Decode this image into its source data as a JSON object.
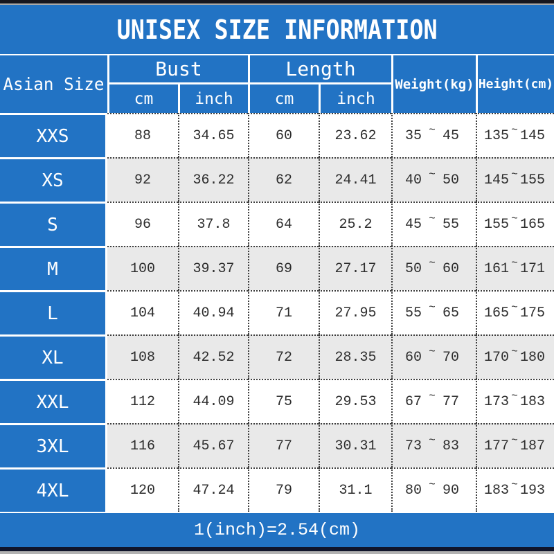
{
  "title": "UNISEX SIZE INFORMATION",
  "table": {
    "size_header": "Asian Size",
    "bust_group": {
      "label": "Bust",
      "cm": "cm",
      "inch": "inch"
    },
    "length_group": {
      "label": "Length",
      "cm": "cm",
      "inch": "inch"
    },
    "weight_header": "Weight(kg)",
    "height_header": "Height(cm)",
    "tilde": "~",
    "rows": [
      {
        "size": "XXS",
        "bust_cm": "88",
        "bust_inch": "34.65",
        "length_cm": "60",
        "length_inch": "23.62",
        "weight_min": "35",
        "weight_max": "45",
        "height_min": "135",
        "height_max": "145"
      },
      {
        "size": "XS",
        "bust_cm": "92",
        "bust_inch": "36.22",
        "length_cm": "62",
        "length_inch": "24.41",
        "weight_min": "40",
        "weight_max": "50",
        "height_min": "145",
        "height_max": "155"
      },
      {
        "size": "S",
        "bust_cm": "96",
        "bust_inch": "37.8",
        "length_cm": "64",
        "length_inch": "25.2",
        "weight_min": "45",
        "weight_max": "55",
        "height_min": "155",
        "height_max": "165"
      },
      {
        "size": "M",
        "bust_cm": "100",
        "bust_inch": "39.37",
        "length_cm": "69",
        "length_inch": "27.17",
        "weight_min": "50",
        "weight_max": "60",
        "height_min": "161",
        "height_max": "171"
      },
      {
        "size": "L",
        "bust_cm": "104",
        "bust_inch": "40.94",
        "length_cm": "71",
        "length_inch": "27.95",
        "weight_min": "55",
        "weight_max": "65",
        "height_min": "165",
        "height_max": "175"
      },
      {
        "size": "XL",
        "bust_cm": "108",
        "bust_inch": "42.52",
        "length_cm": "72",
        "length_inch": "28.35",
        "weight_min": "60",
        "weight_max": "70",
        "height_min": "170",
        "height_max": "180"
      },
      {
        "size": "XXL",
        "bust_cm": "112",
        "bust_inch": "44.09",
        "length_cm": "75",
        "length_inch": "29.53",
        "weight_min": "67",
        "weight_max": "77",
        "height_min": "173",
        "height_max": "183"
      },
      {
        "size": "3XL",
        "bust_cm": "116",
        "bust_inch": "45.67",
        "length_cm": "77",
        "length_inch": "30.31",
        "weight_min": "73",
        "weight_max": "83",
        "height_min": "177",
        "height_max": "187"
      },
      {
        "size": "4XL",
        "bust_cm": "120",
        "bust_inch": "47.24",
        "length_cm": "79",
        "length_inch": "31.1",
        "weight_min": "80",
        "weight_max": "90",
        "height_min": "183",
        "height_max": "193"
      }
    ]
  },
  "footer": {
    "note": "1(inch)=2.54(cm)"
  },
  "colors": {
    "accent_blue": "#2273c4",
    "row_alt_gray": "#e9e9e9",
    "top_bar_dark": "#16161f",
    "bottom_bar_dark": "#10152b",
    "text_dark": "#2d2d2d",
    "text_light": "#ffffff"
  },
  "chart_data": {
    "type": "table",
    "title": "UNISEX SIZE INFORMATION",
    "columns": [
      "Asian Size",
      "Bust cm",
      "Bust inch",
      "Length cm",
      "Length inch",
      "Weight(kg)",
      "Height(cm)"
    ],
    "rows": [
      [
        "XXS",
        88,
        34.65,
        60,
        23.62,
        "35~45",
        "135~145"
      ],
      [
        "XS",
        92,
        36.22,
        62,
        24.41,
        "40~50",
        "145~155"
      ],
      [
        "S",
        96,
        37.8,
        64,
        25.2,
        "45~55",
        "155~165"
      ],
      [
        "M",
        100,
        39.37,
        69,
        27.17,
        "50~60",
        "161~171"
      ],
      [
        "L",
        104,
        40.94,
        71,
        27.95,
        "55~65",
        "165~175"
      ],
      [
        "XL",
        108,
        42.52,
        72,
        28.35,
        "60~70",
        "170~180"
      ],
      [
        "XXL",
        112,
        44.09,
        75,
        29.53,
        "67~77",
        "173~183"
      ],
      [
        "3XL",
        116,
        45.67,
        77,
        30.31,
        "73~83",
        "177~187"
      ],
      [
        "4XL",
        120,
        47.24,
        79,
        31.1,
        "80~90",
        "183~193"
      ]
    ],
    "note": "1(inch)=2.54(cm)"
  }
}
